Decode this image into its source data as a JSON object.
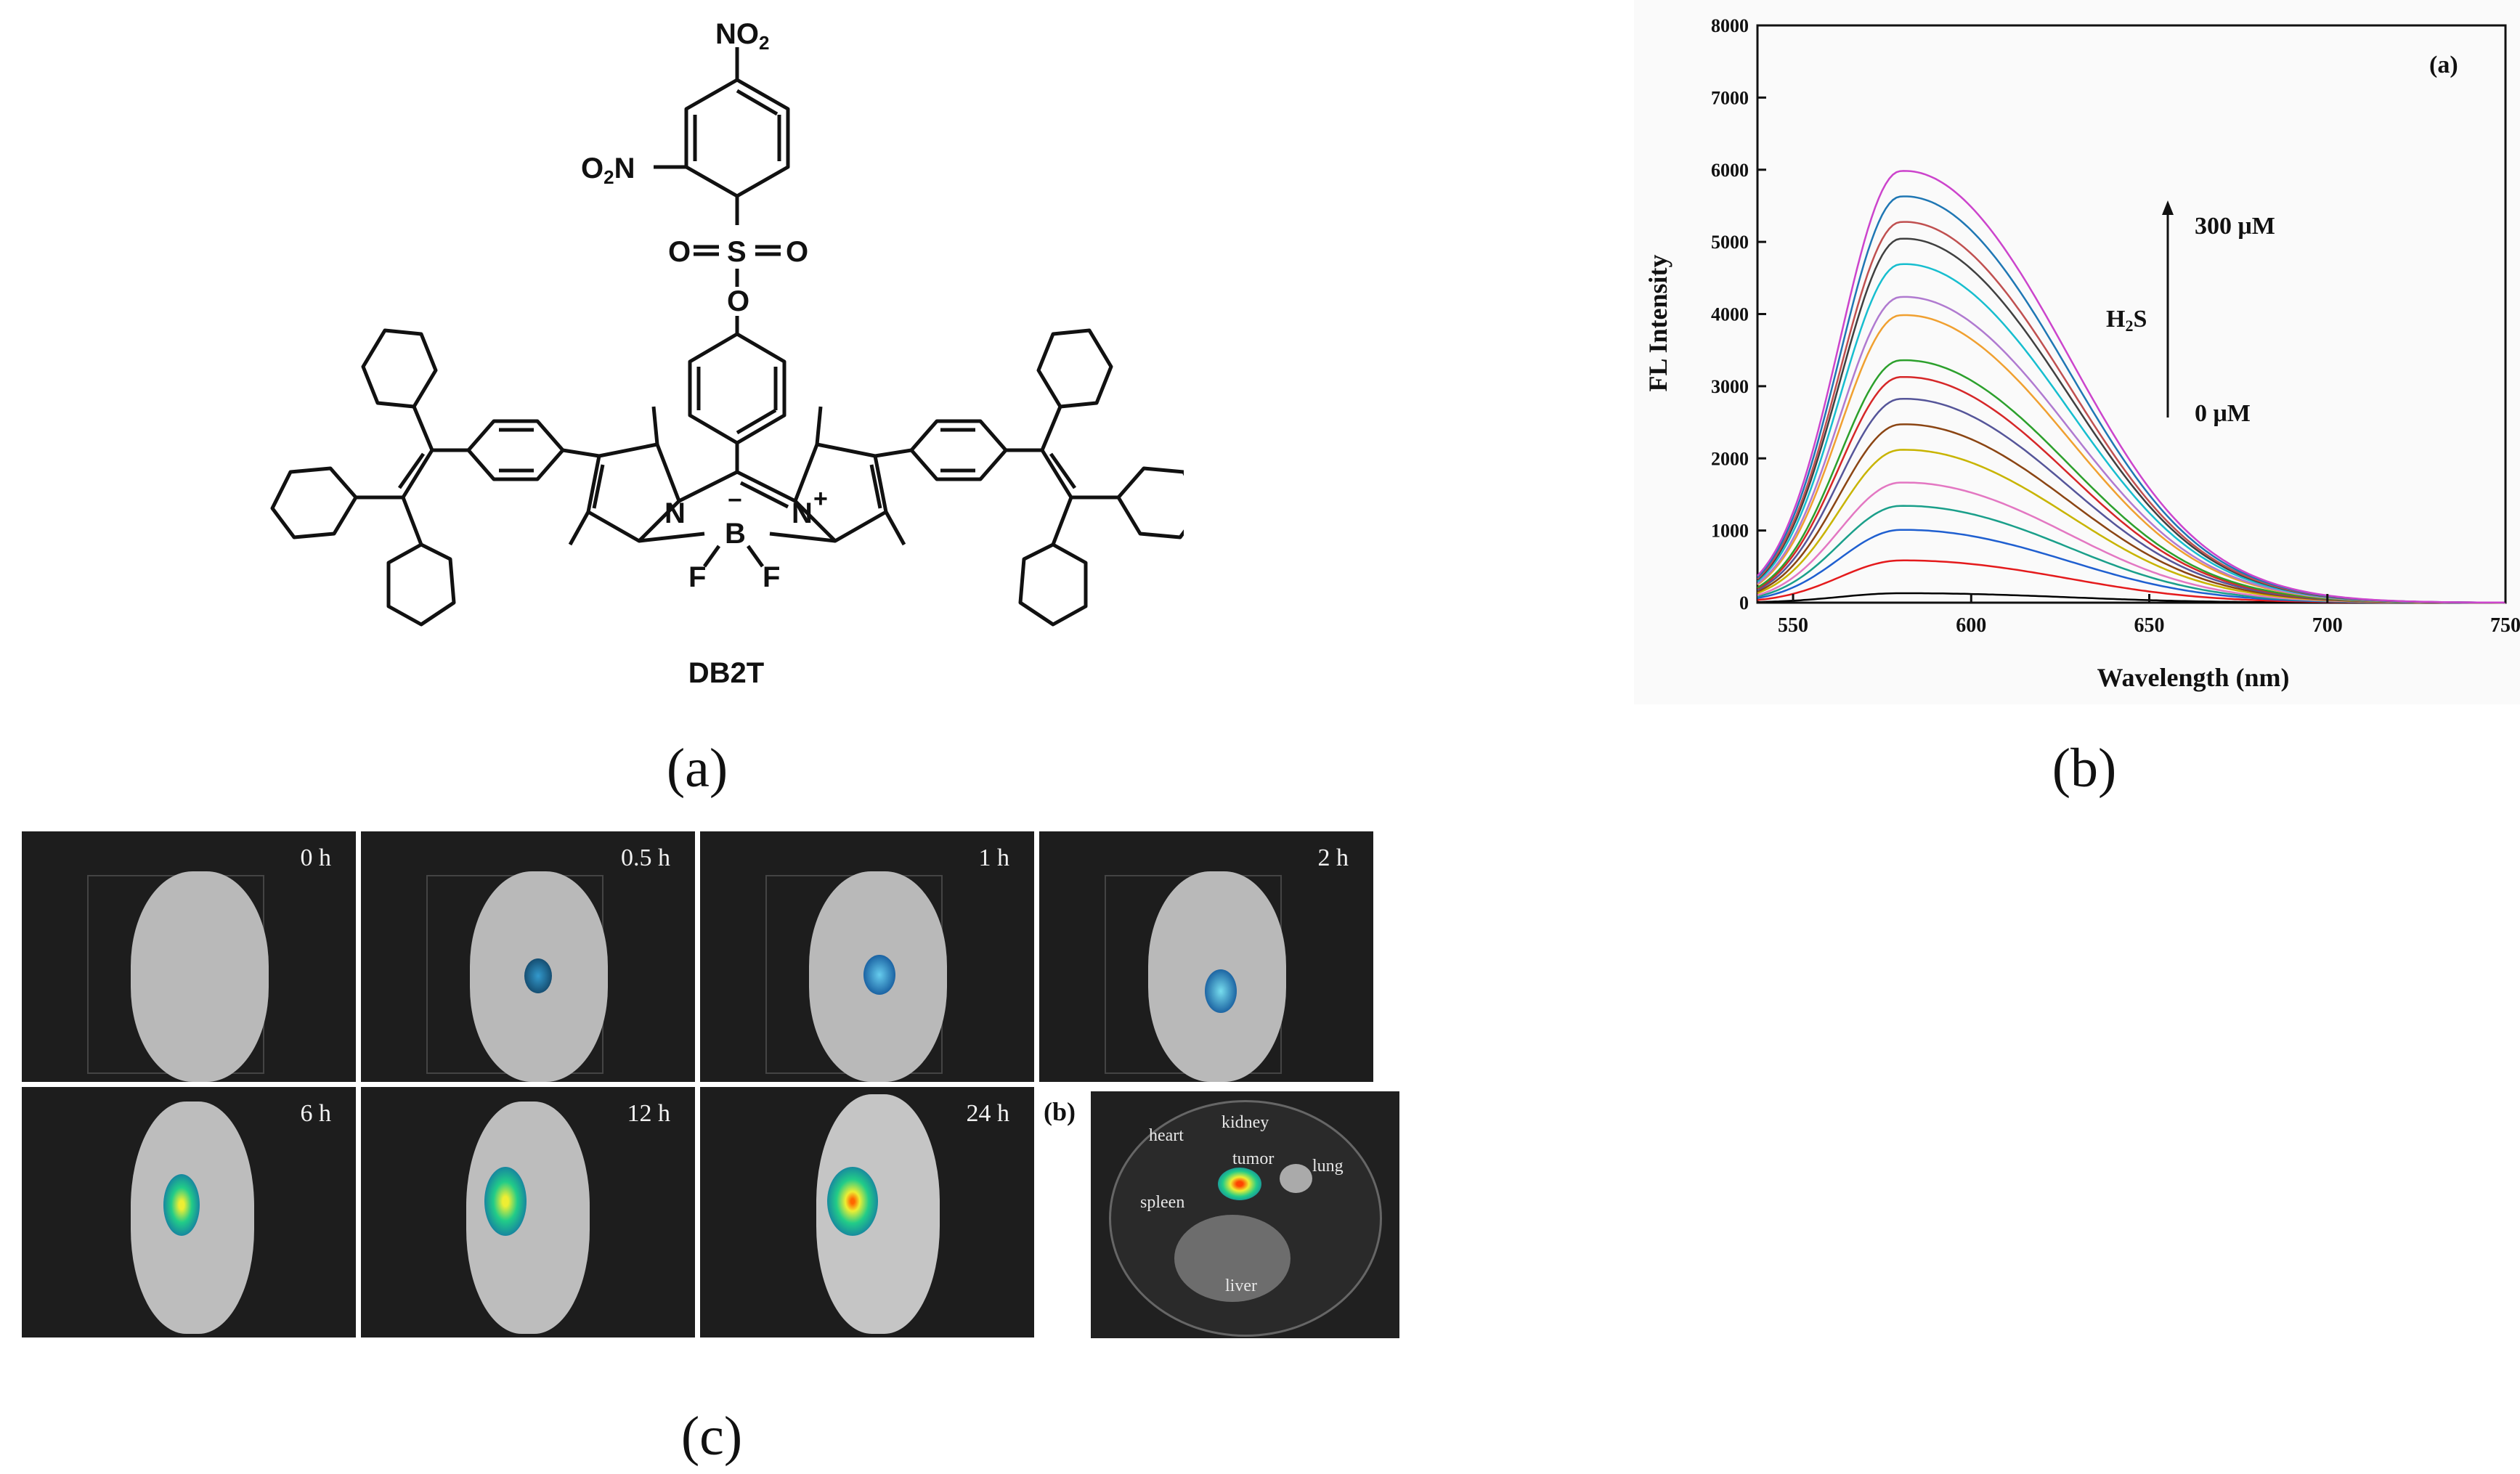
{
  "panel_labels": {
    "a": "(a)",
    "b": "(b)",
    "c": "(c)"
  },
  "molecule": {
    "name": "DB2T",
    "groups": [
      "NO2",
      "O2N",
      "S",
      "O",
      "N",
      "B",
      "F"
    ],
    "charges": [
      "−",
      "+"
    ]
  },
  "chart_data": {
    "type": "line",
    "inner_label": "(a)",
    "xlabel": "Wavelength (nm)",
    "ylabel": "FL Intensity",
    "xlim": [
      540,
      750
    ],
    "ylim": [
      0,
      8000
    ],
    "x_ticks": [
      550,
      600,
      650,
      700,
      750
    ],
    "y_ticks": [
      0,
      1000,
      2000,
      3000,
      4000,
      5000,
      6000,
      7000,
      8000
    ],
    "peak_wavelength": 580,
    "annotation": {
      "top": "300 μM",
      "middle": "H2S",
      "bottom": "0 μM"
    },
    "series": [
      {
        "peak": 130,
        "color": "#000000"
      },
      {
        "peak": 580,
        "color": "#e41a1c"
      },
      {
        "peak": 1000,
        "color": "#1f5fd0"
      },
      {
        "peak": 1330,
        "color": "#1a9f8a"
      },
      {
        "peak": 1650,
        "color": "#e377c2"
      },
      {
        "peak": 2100,
        "color": "#c8b400"
      },
      {
        "peak": 2450,
        "color": "#8b4513"
      },
      {
        "peak": 2800,
        "color": "#555599"
      },
      {
        "peak": 3100,
        "color": "#d62728"
      },
      {
        "peak": 3330,
        "color": "#2ca02c"
      },
      {
        "peak": 3950,
        "color": "#f0a030"
      },
      {
        "peak": 4200,
        "color": "#b07ad0"
      },
      {
        "peak": 4650,
        "color": "#17becf"
      },
      {
        "peak": 5000,
        "color": "#404040"
      },
      {
        "peak": 5230,
        "color": "#c05050"
      },
      {
        "peak": 5580,
        "color": "#1f77b4"
      },
      {
        "peak": 5930,
        "color": "#cc44cc"
      }
    ]
  },
  "imaging": {
    "time_points": [
      "0 h",
      "0.5 h",
      "1 h",
      "2 h",
      "6 h",
      "12 h",
      "24 h"
    ],
    "ex_vivo_label": "(b)",
    "organs": [
      "heart",
      "kidney",
      "tumor",
      "lung",
      "spleen",
      "liver"
    ]
  }
}
